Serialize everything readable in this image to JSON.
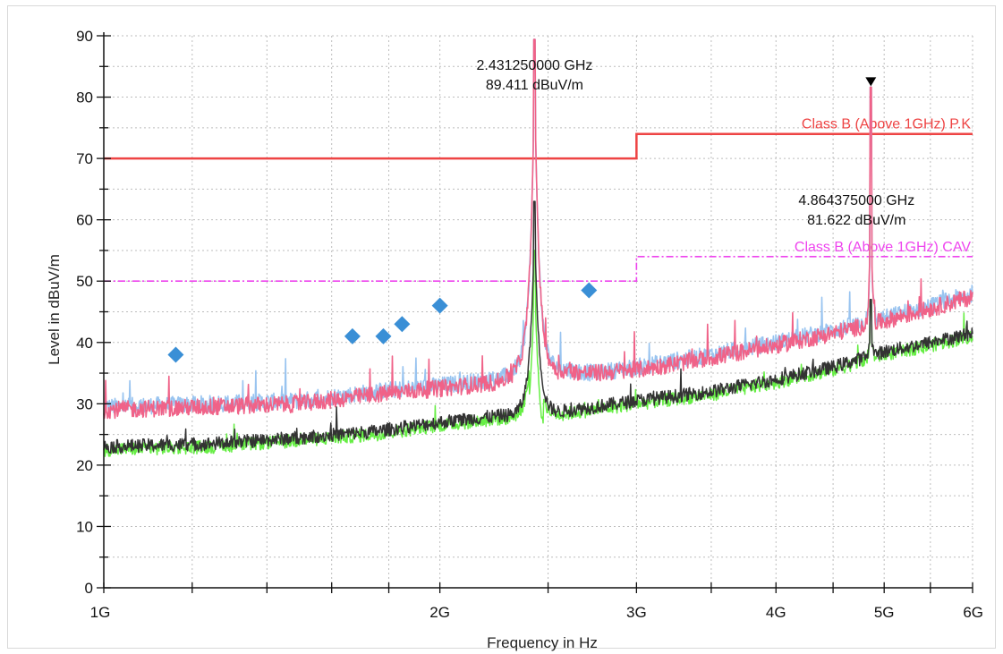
{
  "chart_data": {
    "type": "line",
    "xlabel": "Frequency in Hz",
    "ylabel": "Level in dBuV/m",
    "xscale": "log",
    "xlim_hz": [
      1000000000,
      6000000000
    ],
    "ylim": [
      0,
      90
    ],
    "grid": true,
    "x_ticks": [
      {
        "value": 1000000000,
        "label": "1G"
      },
      {
        "value": 2000000000,
        "label": "2G"
      },
      {
        "value": 3000000000,
        "label": "3G"
      },
      {
        "value": 4000000000,
        "label": "4G"
      },
      {
        "value": 5000000000,
        "label": "5G"
      },
      {
        "value": 6000000000,
        "label": "6G"
      }
    ],
    "y_ticks": [
      {
        "value": 0,
        "label": "0"
      },
      {
        "value": 10,
        "label": "10"
      },
      {
        "value": 20,
        "label": "20"
      },
      {
        "value": 30,
        "label": "30"
      },
      {
        "value": 40,
        "label": "40"
      },
      {
        "value": 50,
        "label": "50"
      },
      {
        "value": 60,
        "label": "60"
      },
      {
        "value": 70,
        "label": "70"
      },
      {
        "value": 80,
        "label": "80"
      },
      {
        "value": 90,
        "label": "90"
      }
    ],
    "limits": [
      {
        "name": "Class B (Above 1GHz) P.K",
        "color": "#ee4444",
        "style": "solid",
        "segments": [
          {
            "x": [
              1000000000,
              3000000000
            ],
            "y": 70
          },
          {
            "x": [
              3000000000,
              6000000000
            ],
            "y": 74
          }
        ]
      },
      {
        "name": "Class B (Above 1GHz) CAV",
        "color": "#ee44ee",
        "style": "dash-dot",
        "segments": [
          {
            "x": [
              1000000000,
              3000000000
            ],
            "y": 50
          },
          {
            "x": [
              3000000000,
              6000000000
            ],
            "y": 54
          }
        ]
      }
    ],
    "series": [
      {
        "color": "#99c4f0",
        "kind": "peak-trace",
        "x": [
          1000000000,
          1250000000,
          1500000000,
          1750000000,
          2000000000,
          2250000000,
          2400000000,
          2500000000,
          2750000000,
          3000000000,
          3500000000,
          4000000000,
          4500000000,
          5000000000,
          5500000000,
          6000000000
        ],
        "y": [
          29.5,
          30,
          30.5,
          32,
          33,
          34,
          36,
          36,
          35,
          36,
          38,
          40,
          42,
          44,
          46,
          48
        ]
      },
      {
        "color": "#f06288",
        "kind": "peak-trace",
        "x": [
          1000000000,
          1250000000,
          1500000000,
          1750000000,
          2000000000,
          2250000000,
          2400000000,
          2500000000,
          2750000000,
          3000000000,
          3500000000,
          4000000000,
          4500000000,
          5000000000,
          5500000000,
          6000000000
        ],
        "y": [
          29,
          29.5,
          30,
          31.5,
          32.5,
          33.5,
          36,
          35.5,
          35,
          35.5,
          37.5,
          39.5,
          41.5,
          43.5,
          45.5,
          47.5
        ]
      },
      {
        "color": "#66ee44",
        "kind": "average-trace",
        "x": [
          1000000000,
          1250000000,
          1500000000,
          1750000000,
          2000000000,
          2250000000,
          2400000000,
          2500000000,
          2750000000,
          3000000000,
          3500000000,
          4000000000,
          4500000000,
          5000000000,
          5500000000,
          6000000000
        ],
        "y": [
          22.5,
          23,
          24,
          25,
          26.5,
          27.5,
          28,
          28,
          29,
          30,
          31.5,
          33.5,
          35.5,
          38,
          39.5,
          41
        ]
      },
      {
        "color": "#333333",
        "kind": "average-trace",
        "x": [
          1000000000,
          1250000000,
          1500000000,
          1750000000,
          2000000000,
          2250000000,
          2400000000,
          2500000000,
          2750000000,
          3000000000,
          3500000000,
          4000000000,
          4500000000,
          5000000000,
          5500000000,
          6000000000
        ],
        "y": [
          23,
          23.5,
          24.5,
          25.5,
          27,
          28,
          28.5,
          28.5,
          29.5,
          30.5,
          32,
          34,
          36,
          38.5,
          40,
          41.5
        ]
      }
    ],
    "peaks": [
      {
        "x": 2431250000,
        "y": 89.411
      },
      {
        "x": 4864375000,
        "y": 81.622
      }
    ],
    "markers": [
      {
        "shape": "diamond",
        "color": "#3a8fd6",
        "x": 1160000000,
        "y": 38
      },
      {
        "shape": "diamond",
        "color": "#3a8fd6",
        "x": 1670000000,
        "y": 41
      },
      {
        "shape": "diamond",
        "color": "#3a8fd6",
        "x": 1780000000,
        "y": 41
      },
      {
        "shape": "diamond",
        "color": "#3a8fd6",
        "x": 1850000000,
        "y": 43
      },
      {
        "shape": "diamond",
        "color": "#3a8fd6",
        "x": 2000000000,
        "y": 46
      },
      {
        "shape": "diamond",
        "color": "#3a8fd6",
        "x": 2720000000,
        "y": 48.5
      },
      {
        "shape": "triangle-down",
        "color": "#000000",
        "x": 4864375000,
        "y": 82.5
      }
    ],
    "annotations": [
      {
        "line1": "2.431250000 GHz",
        "line2": "89.411 dBuV/m",
        "x": 2431250000,
        "y": 89.411
      },
      {
        "line1": "4.864375000 GHz",
        "line2": "81.622 dBuV/m",
        "x": 4864375000,
        "y": 81.622
      }
    ]
  }
}
